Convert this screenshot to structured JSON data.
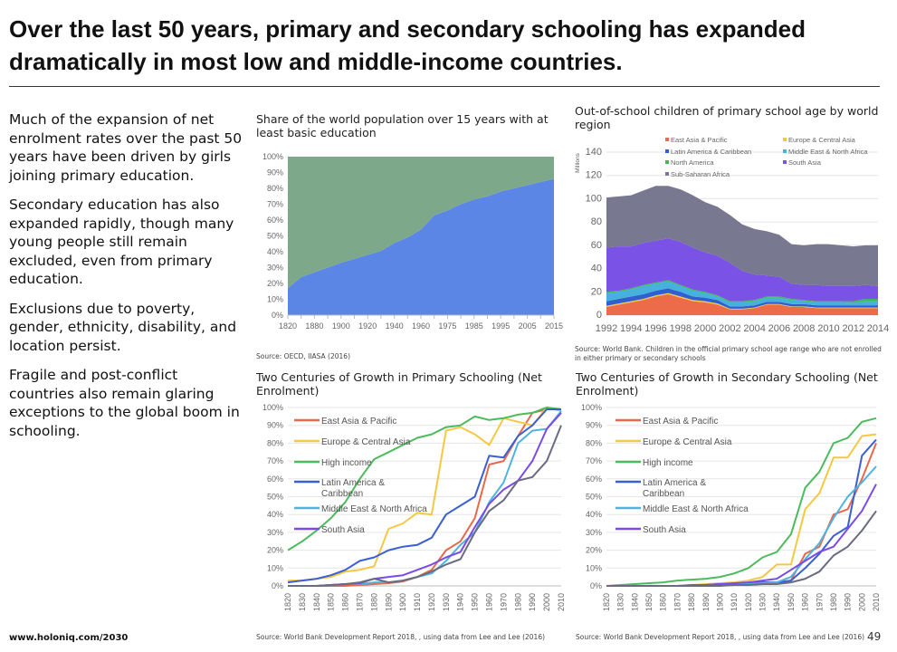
{
  "header": {
    "title": "Over the last 50 years, primary and secondary schooling has expanded dramatically in most low and middle-income countries."
  },
  "bullets": [
    "Much of the expansion of net enrolment rates over the past 50 years have been driven by girls joining primary education.",
    "Secondary education has also expanded rapidly, though many young people still remain excluded, even from primary education.",
    "Exclusions due to poverty, gender, ethnicity, disability, and location persist.",
    "Fragile and post-conflict countries also remain glaring exceptions to the global boom in schooling."
  ],
  "footer": {
    "url": "www.holoniq.com/2030",
    "page": "49"
  },
  "chart_data": [
    {
      "type": "area",
      "title": "Share of the world population over 15 years with at least basic education",
      "source": "Source: OECD, IIASA (2016)",
      "x": [
        1820,
        1870,
        1880,
        1890,
        1900,
        1910,
        1920,
        1930,
        1940,
        1950,
        1960,
        1970,
        1975,
        1980,
        1985,
        1990,
        1995,
        2000,
        2005,
        2010,
        2015
      ],
      "x_tick_labels": [
        "1820",
        "1880",
        "1900",
        "1920",
        "1940",
        "1960",
        "1975",
        "1985",
        "1995",
        "2005",
        "2015"
      ],
      "y_tick_labels": [
        "0%",
        "10%",
        "20%",
        "30%",
        "40%",
        "50%",
        "60%",
        "70%",
        "80%",
        "90%",
        "100%"
      ],
      "ylim": [
        0,
        100
      ],
      "series": [
        {
          "values": [
            17,
            24,
            27,
            30,
            33,
            35.5,
            38,
            40.5,
            45.5,
            49,
            54,
            63,
            66,
            70,
            73,
            75,
            78,
            80,
            82,
            84,
            86
          ],
          "color": "#5b86e5"
        },
        {
          "values": [
            83,
            76,
            73,
            70,
            67,
            64.5,
            62,
            59.5,
            54.5,
            51,
            46,
            37,
            34,
            30,
            27,
            25,
            22,
            20,
            18,
            16,
            14
          ],
          "color": "#7ea88a"
        }
      ],
      "stacked": true,
      "grid": false
    },
    {
      "type": "area",
      "title": "Out-of-school children of primary school age by world region",
      "ylabel": "Millions",
      "source": "Source: World Bank. Children in the official primary school age range who are not enrolled in either primary or secondary schools",
      "x": [
        1992,
        1993,
        1994,
        1995,
        1996,
        1997,
        1998,
        1999,
        2000,
        2001,
        2002,
        2003,
        2004,
        2005,
        2006,
        2007,
        2008,
        2009,
        2010,
        2011,
        2012,
        2013,
        2014
      ],
      "x_tick_labels": [
        "1992",
        "1994",
        "1996",
        "1998",
        "2000",
        "2002",
        "2004",
        "2006",
        "2008",
        "2010",
        "2012",
        "2014"
      ],
      "y_tick_labels": [
        "0",
        "20",
        "40",
        "60",
        "80",
        "100",
        "120",
        "140"
      ],
      "ylim": [
        0,
        140
      ],
      "stacked": true,
      "grid": true,
      "legend": "top",
      "series": [
        {
          "name": "East Asia & Pacific",
          "color": "#ec6c4a",
          "values": [
            7,
            9,
            11,
            13,
            16,
            18,
            15,
            12,
            11,
            9,
            5,
            5,
            6,
            9,
            9,
            7,
            7,
            6,
            6,
            6,
            6,
            6,
            6
          ]
        },
        {
          "name": "Europe & Central Asia",
          "color": "#f5c842",
          "values": [
            1,
            1,
            1,
            1,
            1,
            1,
            1,
            1,
            1,
            1,
            0.5,
            0.5,
            0.5,
            0.5,
            0.5,
            0.5,
            0.5,
            0.5,
            0.5,
            0.5,
            0.5,
            0.5,
            0.5
          ]
        },
        {
          "name": "Latin America & Caribbean",
          "color": "#2f5fd0",
          "values": [
            4,
            4,
            4,
            4,
            4,
            4,
            4,
            3,
            3,
            3,
            2,
            2,
            2,
            2,
            2,
            2,
            2,
            2,
            2,
            2,
            2,
            2,
            2
          ]
        },
        {
          "name": "Middle East & North Africa",
          "color": "#45b1dc",
          "values": [
            7,
            6,
            6,
            7,
            6,
            6,
            5,
            5,
            4,
            3,
            3.5,
            3.5,
            3.5,
            3.5,
            3.5,
            3.5,
            2.5,
            2.5,
            2.5,
            2.5,
            2,
            3.5,
            3.5
          ]
        },
        {
          "name": "North America",
          "color": "#3cb95a",
          "values": [
            1,
            1,
            1,
            1,
            1,
            1,
            1,
            1,
            1,
            1,
            1,
            1,
            1,
            1,
            1,
            1,
            1,
            1,
            1,
            1,
            1.5,
            2,
            2
          ]
        },
        {
          "name": "South Asia",
          "color": "#7a52e6",
          "values": [
            38,
            38,
            36,
            36,
            36,
            36,
            37,
            36,
            34,
            34,
            33,
            26,
            22,
            18,
            17,
            13,
            13,
            14,
            13,
            13,
            13,
            12,
            11
          ]
        },
        {
          "name": "Sub-Saharan Africa",
          "color": "#787890",
          "values": [
            43,
            43,
            44,
            45,
            47,
            45,
            45,
            45,
            43,
            42,
            41,
            40,
            39,
            38,
            36,
            34,
            34,
            35,
            36,
            35,
            34,
            34,
            35
          ]
        }
      ]
    },
    {
      "type": "line",
      "title": "Two Centuries of Growth in Primary Schooling (Net Enrolment)",
      "source": "Source: World Bank Development Report 2018, , using data from Lee and Lee (2016)",
      "x": [
        1820,
        1830,
        1840,
        1850,
        1860,
        1870,
        1880,
        1890,
        1900,
        1910,
        1920,
        1930,
        1940,
        1950,
        1960,
        1970,
        1980,
        1990,
        2000,
        2010
      ],
      "x_tick_labels": [
        "1820",
        "1830",
        "1840",
        "1850",
        "1860",
        "1870",
        "1880",
        "1890",
        "1900",
        "1910",
        "1920",
        "1930",
        "1940",
        "1950",
        "1960",
        "1970",
        "1980",
        "1990",
        "2000",
        "2010"
      ],
      "y_tick_labels": [
        "0%",
        "10%",
        "20%",
        "30%",
        "40%",
        "50%",
        "60%",
        "70%",
        "80%",
        "90%",
        "100%"
      ],
      "ylim": [
        0,
        100
      ],
      "grid": true,
      "legend": "top-left",
      "series": [
        {
          "name": "East Asia & Pacific",
          "color": "#e8694a",
          "values": [
            0,
            0,
            0,
            0,
            0,
            0.5,
            1,
            1.5,
            2.5,
            5,
            9,
            20,
            25,
            38,
            68,
            70,
            84,
            97,
            99,
            99
          ]
        },
        {
          "name": "Europe & Central Asia",
          "color": "#f5c842",
          "values": [
            3,
            3,
            4,
            5,
            8,
            9,
            11,
            32,
            35,
            41,
            40,
            87,
            89,
            85,
            79,
            94,
            92,
            90,
            100,
            98
          ]
        },
        {
          "name": "High income",
          "color": "#4cbb5c",
          "values": [
            20,
            25,
            31,
            38,
            47,
            60,
            71,
            75,
            79,
            83,
            85,
            89,
            90,
            95,
            93,
            94,
            96,
            97,
            100,
            99
          ]
        },
        {
          "name": "Latin America & Caribbean",
          "color": "#3b5fd4",
          "values": [
            2,
            3,
            4,
            6,
            9,
            14,
            16,
            20,
            22,
            23,
            27,
            40,
            45,
            50,
            73,
            72,
            84,
            90,
            99,
            99
          ]
        },
        {
          "name": "Middle East & North Africa",
          "color": "#4fb3e0",
          "values": [
            0,
            0,
            0,
            0.5,
            1,
            1,
            2,
            2,
            3,
            5,
            7,
            14,
            23,
            30,
            47,
            58,
            80,
            87,
            88,
            98
          ]
        },
        {
          "name": "South Asia",
          "color": "#7a4be8",
          "values": [
            0,
            0,
            0,
            0.5,
            1,
            1.5,
            4,
            5,
            6,
            9,
            12,
            16,
            19,
            33,
            46,
            54,
            59,
            70,
            88,
            97
          ]
        },
        {
          "color": "#6b6b80",
          "values": [
            0,
            0,
            0,
            0.5,
            1,
            2,
            4,
            2,
            3,
            5,
            8,
            12,
            15,
            30,
            42,
            48,
            59,
            61,
            70,
            90
          ]
        }
      ]
    },
    {
      "type": "line",
      "title": "Two Centuries of Growth in Secondary Schooling (Net Enrolment)",
      "source": "Source: World Bank Development Report 2018, , using data from Lee and Lee (2016)",
      "x": [
        1820,
        1830,
        1840,
        1850,
        1860,
        1870,
        1880,
        1890,
        1900,
        1910,
        1920,
        1930,
        1940,
        1950,
        1960,
        1970,
        1980,
        1990,
        2000,
        2010
      ],
      "x_tick_labels": [
        "1820",
        "1830",
        "1840",
        "1850",
        "1860",
        "1870",
        "1880",
        "1890",
        "1900",
        "1910",
        "1920",
        "1930",
        "1940",
        "1950",
        "1960",
        "1970",
        "1980",
        "1990",
        "2000",
        "2010"
      ],
      "y_tick_labels": [
        "0%",
        "10%",
        "20%",
        "30%",
        "40%",
        "50%",
        "60%",
        "70%",
        "80%",
        "90%",
        "100%"
      ],
      "ylim": [
        0,
        100
      ],
      "grid": true,
      "legend": "top-left",
      "series": [
        {
          "name": "East Asia & Pacific",
          "color": "#e8694a",
          "values": [
            0,
            0,
            0,
            0,
            0,
            0,
            0,
            0,
            0.5,
            1,
            1,
            2,
            2,
            3,
            18,
            22,
            40,
            43,
            60,
            80
          ]
        },
        {
          "name": "Europe & Central Asia",
          "color": "#f5c842",
          "values": [
            0,
            0,
            0,
            0,
            0,
            0,
            0.5,
            1,
            1.5,
            2,
            3,
            5,
            12,
            12,
            43,
            52,
            72,
            72,
            84,
            85
          ]
        },
        {
          "name": "High income",
          "color": "#4cbb5c",
          "values": [
            0,
            0.5,
            1,
            1.5,
            2,
            3,
            3.5,
            4,
            5,
            7,
            10,
            16,
            19,
            29,
            55,
            64,
            80,
            83,
            92,
            94
          ]
        },
        {
          "name": "Latin America & Caribbean",
          "color": "#3b5fd4",
          "values": [
            0,
            0,
            0,
            0,
            0,
            0,
            0,
            0.5,
            1,
            1,
            1.5,
            2,
            2,
            3,
            10,
            18,
            28,
            33,
            73,
            82
          ]
        },
        {
          "name": "Middle East & North Africa",
          "color": "#4fb3e0",
          "values": [
            0,
            0,
            0,
            0,
            0,
            0,
            0,
            0,
            0.5,
            1,
            1,
            1.5,
            2,
            5,
            15,
            24,
            38,
            50,
            58,
            67
          ]
        },
        {
          "name": "South Asia",
          "color": "#7a4be8",
          "values": [
            0,
            0,
            0,
            0,
            0,
            0,
            0.5,
            0.5,
            1,
            1.5,
            2,
            3,
            4,
            9,
            14,
            19,
            22,
            32,
            42,
            57
          ]
        },
        {
          "color": "#6b6b80",
          "values": [
            0,
            0,
            0,
            0,
            0,
            0,
            0,
            0,
            0,
            0.5,
            0.5,
            1,
            1,
            2,
            4,
            8,
            17,
            22,
            31,
            42
          ]
        }
      ]
    }
  ]
}
